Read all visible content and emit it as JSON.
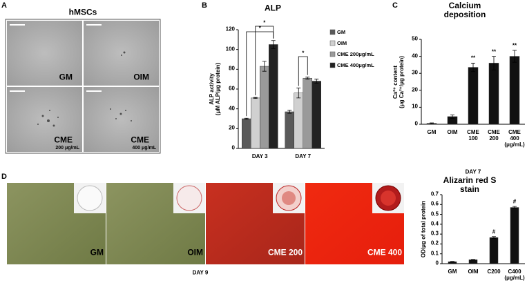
{
  "panel_letters": [
    "A",
    "B",
    "C",
    "D"
  ],
  "panel_a": {
    "title": "hMSCs",
    "images": [
      {
        "label": "GM"
      },
      {
        "label": "OIM"
      },
      {
        "label": "CME",
        "sublabel": "200 μg/mL"
      },
      {
        "label": "CME",
        "sublabel": "400 μg/mL"
      }
    ]
  },
  "panel_d": {
    "caption": "DAY 9",
    "images": [
      {
        "label": "GM"
      },
      {
        "label": "OIM"
      },
      {
        "label": "CME 200"
      },
      {
        "label": "CME 400"
      }
    ]
  },
  "chart_data": [
    {
      "type": "grouped_bar",
      "title": "ALP",
      "y_label": "ALP activity\n(μM ALP/μg protein)",
      "categories": [
        "DAY 3",
        "DAY 7"
      ],
      "series": [
        {
          "name": "GM",
          "color": "#5a5a5a",
          "values": [
            30,
            37
          ],
          "errors": [
            0.5,
            1.5
          ]
        },
        {
          "name": "OIM",
          "color": "#d0d0d0",
          "values": [
            51,
            56
          ],
          "errors": [
            0.5,
            5
          ]
        },
        {
          "name": "CME 200μg/mL",
          "color": "#9a9a9a",
          "values": [
            83,
            71
          ],
          "errors": [
            5,
            1
          ]
        },
        {
          "name": "CME 400μg/mL",
          "color": "#222222",
          "values": [
            105,
            68
          ],
          "errors": [
            4,
            2
          ]
        }
      ],
      "ylim": [
        0,
        120
      ],
      "yticks": [
        0,
        20,
        40,
        60,
        80,
        100,
        120
      ],
      "annotations": [
        "*",
        "*",
        "*"
      ]
    },
    {
      "type": "bar",
      "title": "Calcium deposition",
      "y_label": "Ca²⁺ content\n(μg Ca²⁺/μg protein)",
      "x_label": "DAY 7",
      "categories": [
        "GM",
        "OIM",
        "CME\n100",
        "CME\n200",
        "CME\n400\n(μg/mL)"
      ],
      "values": [
        0.5,
        4.5,
        33.5,
        36,
        40
      ],
      "errors": [
        0.3,
        1,
        2.5,
        4,
        3.5
      ],
      "color": "#111111",
      "ylim": [
        0,
        50
      ],
      "yticks": [
        0,
        10,
        20,
        30,
        40,
        50
      ],
      "annotations": [
        "**",
        "**",
        "**"
      ]
    },
    {
      "type": "bar",
      "title": "Alizarin red S stain",
      "y_label": "OD/μg of total protein",
      "categories": [
        "GM",
        "OIM",
        "C200",
        "C400\n(μg/mL)"
      ],
      "values": [
        0.02,
        0.04,
        0.265,
        0.57
      ],
      "errors": [
        0.003,
        0.003,
        0.01,
        0.01
      ],
      "color": "#111111",
      "ylim": [
        0,
        0.7
      ],
      "yticks": [
        0,
        0.1,
        0.2,
        0.3,
        0.4,
        0.5,
        0.6,
        0.7
      ],
      "annotations": [
        "#",
        "#"
      ]
    }
  ]
}
